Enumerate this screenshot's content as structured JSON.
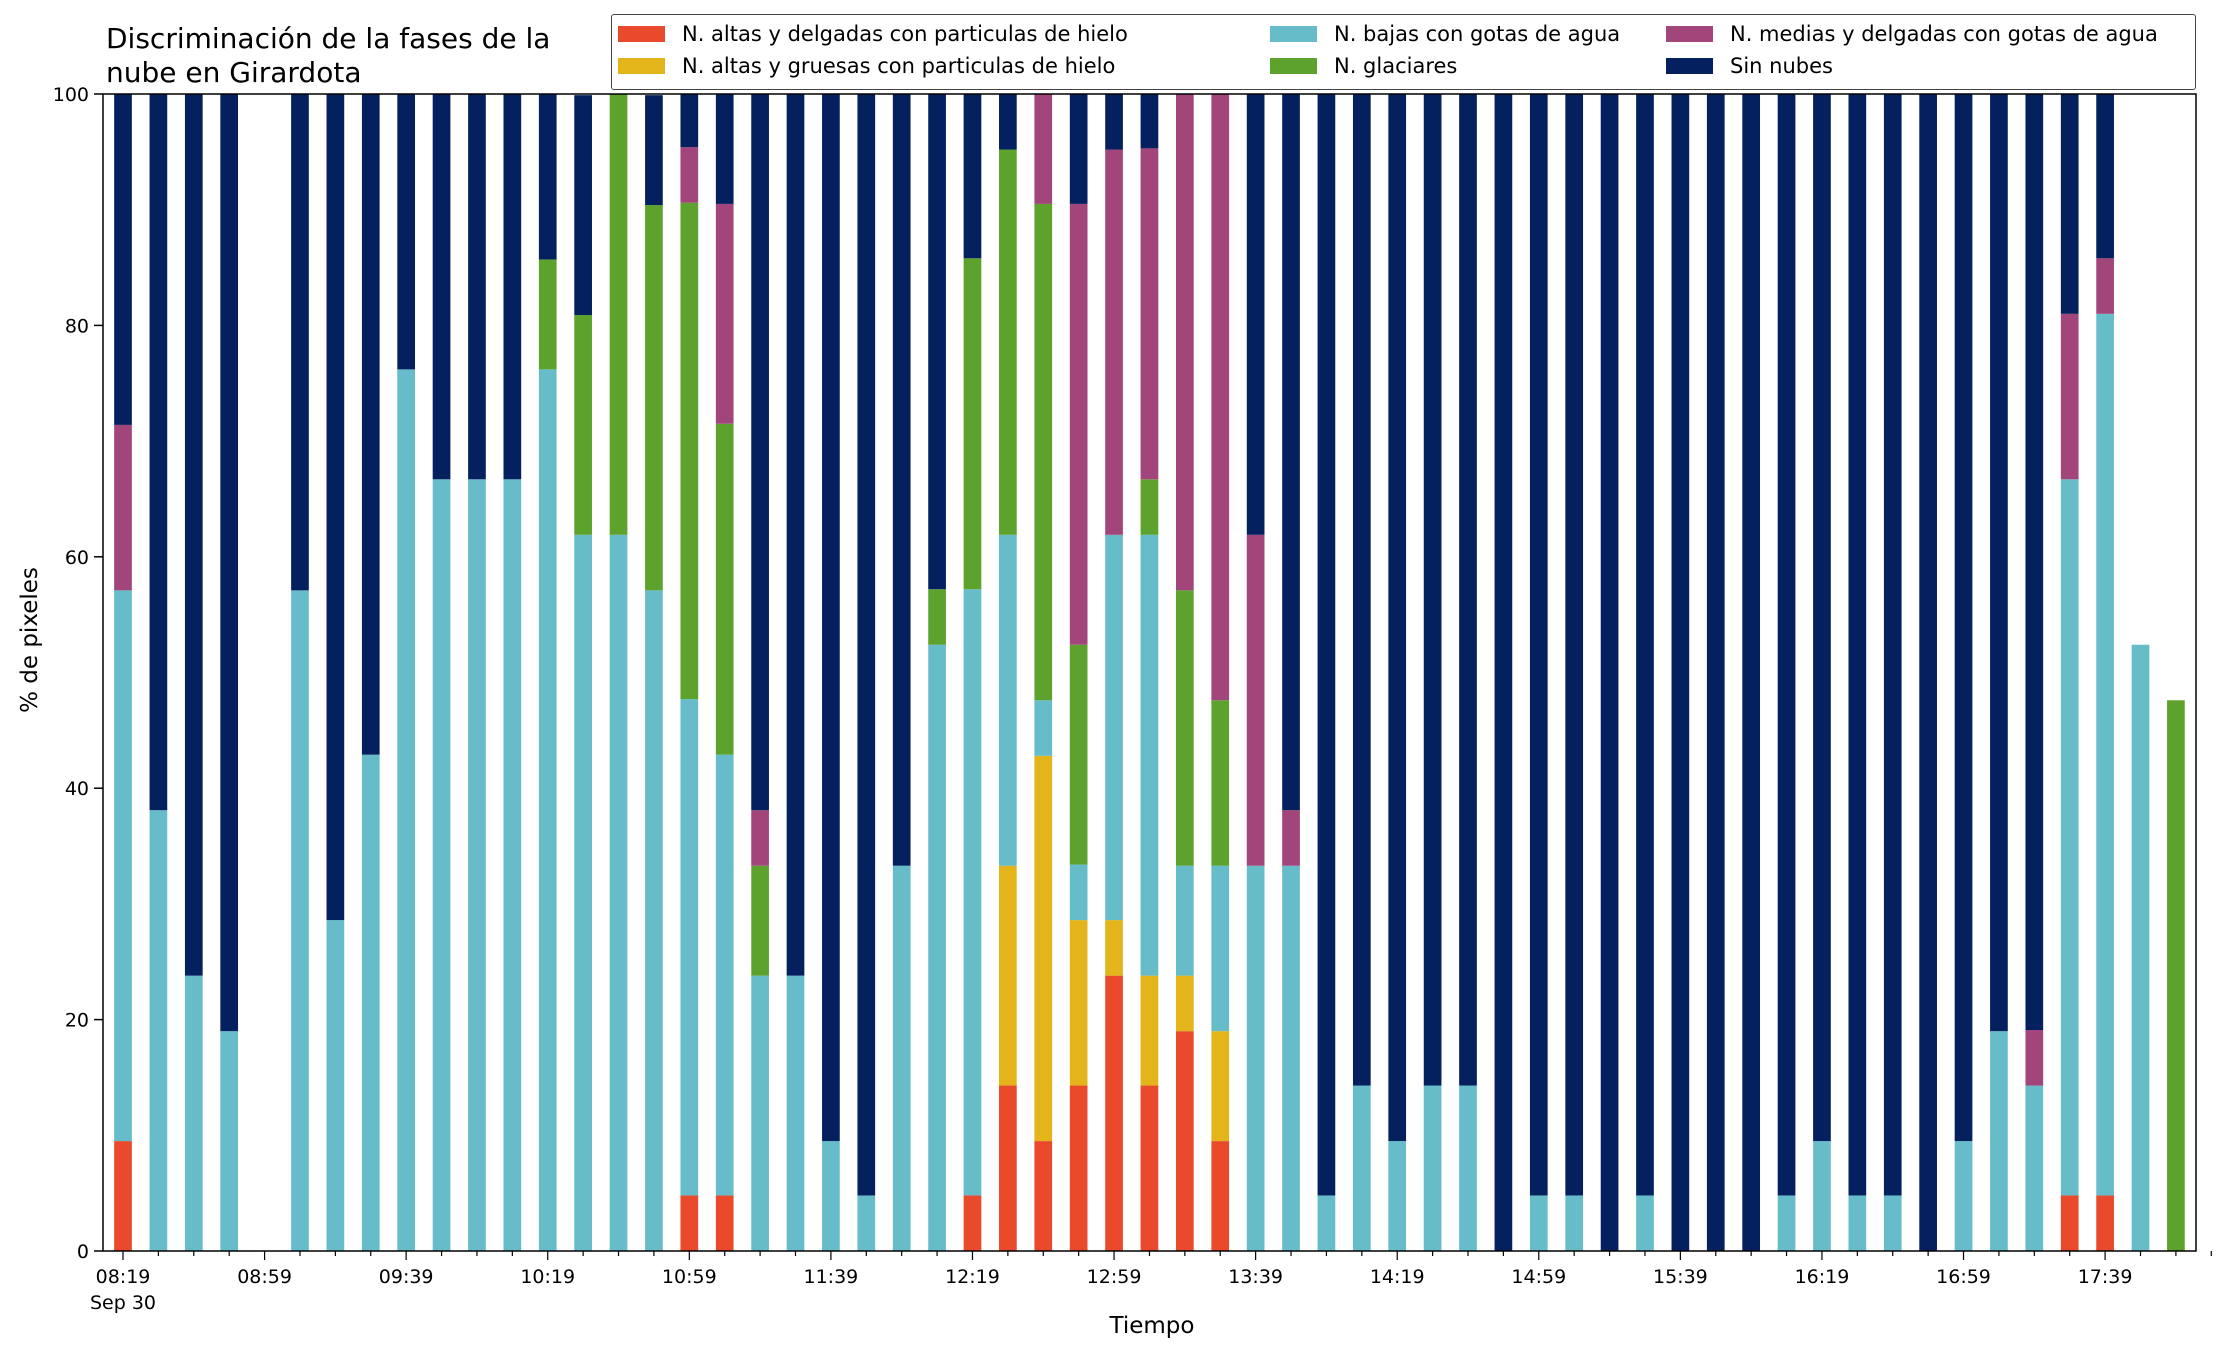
{
  "chart_data": {
    "type": "bar",
    "stacked": true,
    "title_lines": [
      "Discriminación de la fases de la",
      "nube en Girardota"
    ],
    "xlabel": "Tiempo",
    "ylabel": "% de pixeles",
    "ylim": [
      0,
      100
    ],
    "yticks": [
      0,
      20,
      40,
      60,
      80,
      100
    ],
    "grid": false,
    "legend_position": "top-right",
    "x_tick_labels": [
      "08:19",
      "08:59",
      "09:39",
      "10:19",
      "10:59",
      "11:39",
      "12:19",
      "12:59",
      "13:39",
      "14:19",
      "14:59",
      "15:39",
      "16:19",
      "16:59",
      "17:39"
    ],
    "x_date_label": "Sep 30",
    "times": [
      "08:19",
      "08:29",
      "08:39",
      "08:49",
      "08:59",
      "09:09",
      "09:19",
      "09:29",
      "09:39",
      "09:49",
      "09:59",
      "10:09",
      "10:19",
      "10:29",
      "10:39",
      "10:49",
      "10:59",
      "11:09",
      "11:19",
      "11:29",
      "11:39",
      "11:49",
      "11:59",
      "12:09",
      "12:19",
      "12:29",
      "12:39",
      "12:49",
      "12:59",
      "13:09",
      "13:19",
      "13:29",
      "13:39",
      "13:49",
      "13:59",
      "14:09",
      "14:19",
      "14:29",
      "14:39",
      "14:49",
      "14:59",
      "15:09",
      "15:19",
      "15:29",
      "15:39",
      "15:49",
      "15:59",
      "16:09",
      "16:19",
      "16:29",
      "16:39",
      "16:49",
      "16:59",
      "17:09",
      "17:19",
      "17:29",
      "17:39",
      "17:49",
      "17:59"
    ],
    "series": [
      {
        "name": "N. altas y delgadas con particulas de hielo",
        "color": "#e84a2b",
        "values": [
          9.5,
          0,
          0,
          0,
          0,
          0,
          0,
          0,
          0,
          0,
          0,
          0,
          0,
          0,
          0,
          0,
          4.8,
          4.8,
          0,
          0,
          0,
          0,
          0,
          0,
          4.8,
          14.3,
          9.5,
          14.3,
          23.8,
          14.3,
          19.0,
          9.5,
          0,
          0,
          0,
          0,
          0,
          0,
          0,
          0,
          0,
          0,
          0,
          0,
          0,
          0,
          0,
          0,
          0,
          0,
          0,
          0,
          0,
          0,
          0,
          4.8,
          4.8,
          0,
          0
        ]
      },
      {
        "name": "N. altas y gruesas con particulas de hielo",
        "color": "#e3b51a",
        "values": [
          0,
          0,
          0,
          0,
          0,
          0,
          0,
          0,
          0,
          0,
          0,
          0,
          0,
          0,
          0,
          0,
          0,
          0,
          0,
          0,
          0,
          0,
          0,
          0,
          0,
          19.0,
          33.3,
          14.3,
          4.8,
          9.5,
          4.8,
          9.5,
          0,
          0,
          0,
          0,
          0,
          0,
          0,
          0,
          0,
          0,
          0,
          0,
          0,
          0,
          0,
          0,
          0,
          0,
          0,
          0,
          0,
          0,
          0,
          0,
          0,
          0,
          0
        ]
      },
      {
        "name": "N. bajas con gotas de agua",
        "color": "#66bdc9",
        "values": [
          47.6,
          38.1,
          23.8,
          19.0,
          0,
          57.1,
          28.6,
          42.9,
          76.2,
          66.7,
          66.7,
          66.7,
          76.2,
          61.9,
          61.9,
          57.1,
          42.9,
          38.1,
          23.8,
          23.8,
          9.5,
          4.8,
          33.3,
          52.4,
          52.4,
          28.6,
          4.8,
          4.8,
          33.3,
          38.1,
          9.5,
          14.3,
          33.3,
          33.3,
          4.8,
          14.3,
          9.5,
          14.3,
          14.3,
          0,
          4.8,
          4.8,
          0,
          4.8,
          0,
          0,
          0,
          4.8,
          9.5,
          4.8,
          4.8,
          0,
          9.5,
          19.0,
          14.3,
          61.9,
          76.2,
          52.4,
          0
        ]
      },
      {
        "name": "N. glaciares",
        "color": "#5ea22e",
        "values": [
          0,
          0,
          0,
          0,
          0,
          0,
          0,
          0,
          0,
          0,
          0,
          0,
          9.5,
          19.0,
          38.1,
          33.3,
          42.9,
          28.6,
          9.5,
          0,
          0,
          0,
          0,
          4.8,
          28.6,
          33.3,
          42.9,
          19.0,
          0,
          4.8,
          23.8,
          14.3,
          0,
          0,
          0,
          0,
          0,
          0,
          0,
          0,
          0,
          0,
          0,
          0,
          0,
          0,
          0,
          0,
          0,
          0,
          0,
          0,
          0,
          0,
          0,
          0,
          0,
          0,
          47.6
        ]
      },
      {
        "name": "N. medias y delgadas con gotas de agua",
        "color": "#a2457a",
        "values": [
          14.3,
          0,
          0,
          0,
          0,
          0,
          0,
          0,
          0,
          0,
          0,
          0,
          0,
          0,
          0,
          0,
          4.8,
          19.0,
          4.8,
          0,
          0,
          0,
          0,
          0,
          0,
          0,
          9.5,
          38.1,
          33.3,
          28.6,
          42.9,
          52.4,
          28.6,
          4.8,
          0,
          0,
          0,
          0,
          0,
          0,
          0,
          0,
          0,
          0,
          0,
          0,
          0,
          0,
          0,
          0,
          0,
          0,
          0,
          0,
          4.8,
          14.3,
          4.8,
          0,
          0
        ]
      },
      {
        "name": "Sin nubes",
        "color": "#04205f",
        "values": [
          28.6,
          61.9,
          76.2,
          81.0,
          0,
          42.9,
          71.4,
          57.1,
          23.8,
          33.3,
          33.3,
          33.3,
          14.3,
          19.0,
          0,
          9.5,
          4.8,
          9.5,
          61.9,
          76.2,
          90.5,
          95.2,
          66.7,
          42.9,
          14.3,
          4.8,
          0,
          9.5,
          4.8,
          4.8,
          0,
          0,
          38.1,
          61.9,
          95.2,
          85.7,
          90.5,
          85.7,
          85.7,
          100,
          95.2,
          95.2,
          100,
          95.2,
          100,
          100,
          100,
          95.2,
          90.5,
          95.2,
          95.2,
          100,
          90.5,
          81.0,
          81.0,
          19.0,
          14.3,
          0,
          0
        ]
      }
    ]
  }
}
